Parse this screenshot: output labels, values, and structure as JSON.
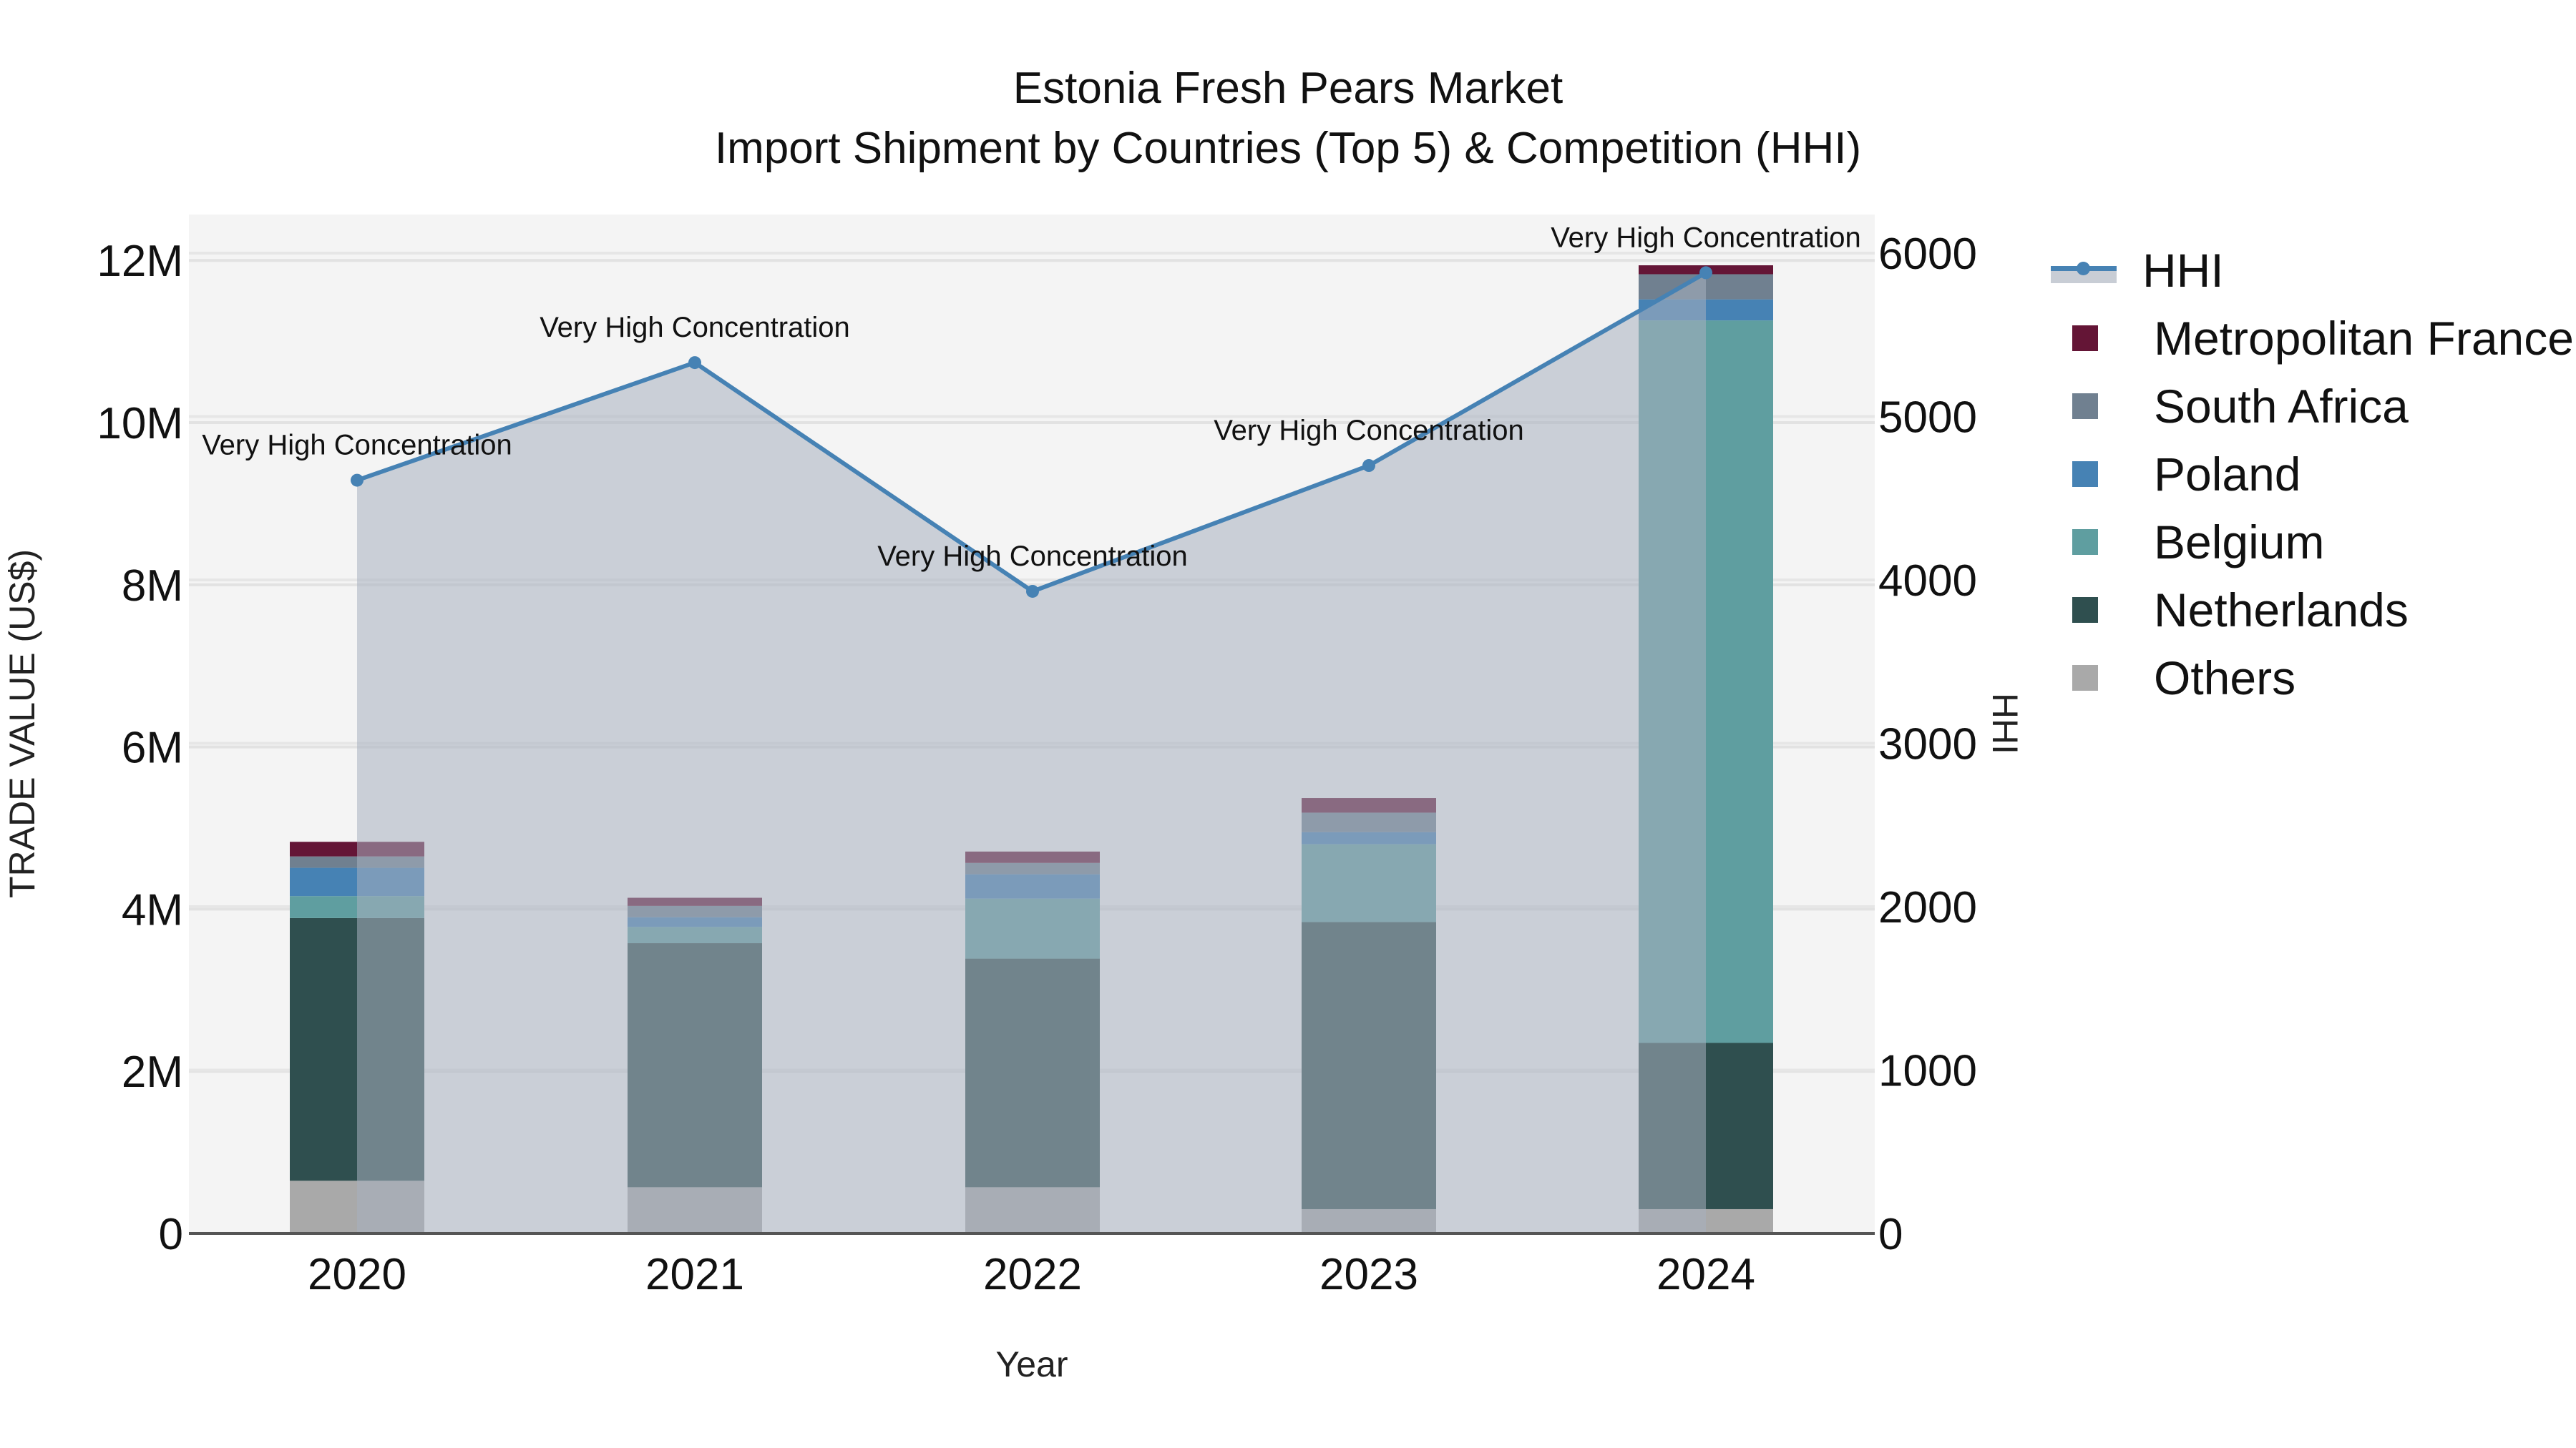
{
  "chart_data": {
    "type": "bar",
    "title": "Estonia Fresh Pears Market",
    "subtitle": "Import Shipment by Countries (Top 5) & Competition (HHI)",
    "xlabel": "Year",
    "ylabel": "TRADE VALUE (US$)",
    "y2label": "HHI",
    "categories": [
      "2020",
      "2021",
      "2022",
      "2023",
      "2024"
    ],
    "ylim": [
      0,
      12500000
    ],
    "y2lim": [
      0,
      6250
    ],
    "yticks": [
      {
        "value": 0,
        "label": "0"
      },
      {
        "value": 2000000,
        "label": "2M"
      },
      {
        "value": 4000000,
        "label": "4M"
      },
      {
        "value": 6000000,
        "label": "6M"
      },
      {
        "value": 8000000,
        "label": "8M"
      },
      {
        "value": 10000000,
        "label": "10M"
      },
      {
        "value": 12000000,
        "label": "12M"
      }
    ],
    "y2ticks": [
      {
        "value": 0,
        "label": "0"
      },
      {
        "value": 1000,
        "label": "1000"
      },
      {
        "value": 2000,
        "label": "2000"
      },
      {
        "value": 3000,
        "label": "3000"
      },
      {
        "value": 4000,
        "label": "4000"
      },
      {
        "value": 5000,
        "label": "5000"
      },
      {
        "value": 6000,
        "label": "6000"
      }
    ],
    "grid": true,
    "legend_position": "right",
    "stacking_order_bottom_to_top": [
      "Others",
      "Netherlands",
      "Belgium",
      "Poland",
      "South Africa",
      "Metropolitan France"
    ],
    "series": [
      {
        "name": "Others",
        "type": "bar",
        "color": "#A9A9A9",
        "values": [
          650000,
          570000,
          570000,
          300000,
          300000
        ]
      },
      {
        "name": "Netherlands",
        "type": "bar",
        "color": "#2F4F4F",
        "values": [
          3240000,
          3010000,
          2820000,
          3540000,
          2050000
        ]
      },
      {
        "name": "Belgium",
        "type": "bar",
        "color": "#5F9EA0",
        "values": [
          270000,
          200000,
          740000,
          960000,
          8910000
        ]
      },
      {
        "name": "Poland",
        "type": "bar",
        "color": "#4682B4",
        "values": [
          350000,
          120000,
          300000,
          150000,
          260000
        ]
      },
      {
        "name": "South Africa",
        "type": "bar",
        "color": "#708090",
        "values": [
          140000,
          140000,
          140000,
          240000,
          310000
        ]
      },
      {
        "name": "Metropolitan France",
        "type": "bar",
        "color": "#641536",
        "values": [
          180000,
          100000,
          140000,
          180000,
          110000
        ]
      },
      {
        "name": "HHI",
        "type": "line+area",
        "axis": "y2",
        "color": "#4682B4",
        "fill": "#c8cdd5",
        "values": [
          4610,
          5330,
          3930,
          4700,
          5880
        ]
      }
    ],
    "annotations": [
      {
        "x": "2020",
        "text": "Very High Concentration"
      },
      {
        "x": "2021",
        "text": "Very High Concentration"
      },
      {
        "x": "2022",
        "text": "Very High Concentration"
      },
      {
        "x": "2023",
        "text": "Very High Concentration"
      },
      {
        "x": "2024",
        "text": "Very High Concentration"
      }
    ]
  },
  "legend": {
    "items": [
      {
        "label": "HHI",
        "color": "#4682B4",
        "kind": "line"
      },
      {
        "label": "Metropolitan France",
        "color": "#641536",
        "kind": "box"
      },
      {
        "label": "South Africa",
        "color": "#708090",
        "kind": "box"
      },
      {
        "label": "Poland",
        "color": "#4682B4",
        "kind": "box"
      },
      {
        "label": "Belgium",
        "color": "#5F9EA0",
        "kind": "box"
      },
      {
        "label": "Netherlands",
        "color": "#2F4F4F",
        "kind": "box"
      },
      {
        "label": "Others",
        "color": "#A9A9A9",
        "kind": "box"
      }
    ]
  }
}
